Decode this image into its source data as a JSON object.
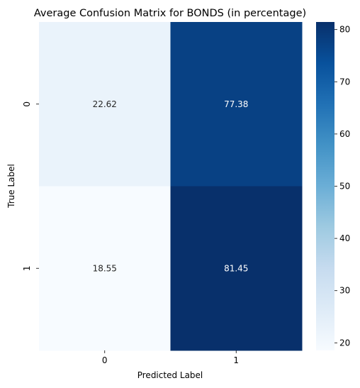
{
  "chart_data": {
    "type": "heatmap",
    "title": "Average Confusion Matrix for BONDS (in percentage)",
    "xlabel": "Predicted Label",
    "ylabel": "True Label",
    "x_categories": [
      "0",
      "1"
    ],
    "y_categories": [
      "0",
      "1"
    ],
    "values": [
      [
        22.62,
        77.38
      ],
      [
        18.55,
        81.45
      ]
    ],
    "cell_labels": [
      [
        "22.62",
        "77.38"
      ],
      [
        "18.55",
        "81.45"
      ]
    ],
    "colorbar": {
      "range": [
        18.55,
        81.45
      ],
      "ticks": [
        20,
        30,
        40,
        50,
        60,
        70,
        80
      ],
      "tick_labels": [
        "20",
        "30",
        "40",
        "50",
        "60",
        "70",
        "80"
      ]
    },
    "colormap": "Blues",
    "grid": false
  }
}
